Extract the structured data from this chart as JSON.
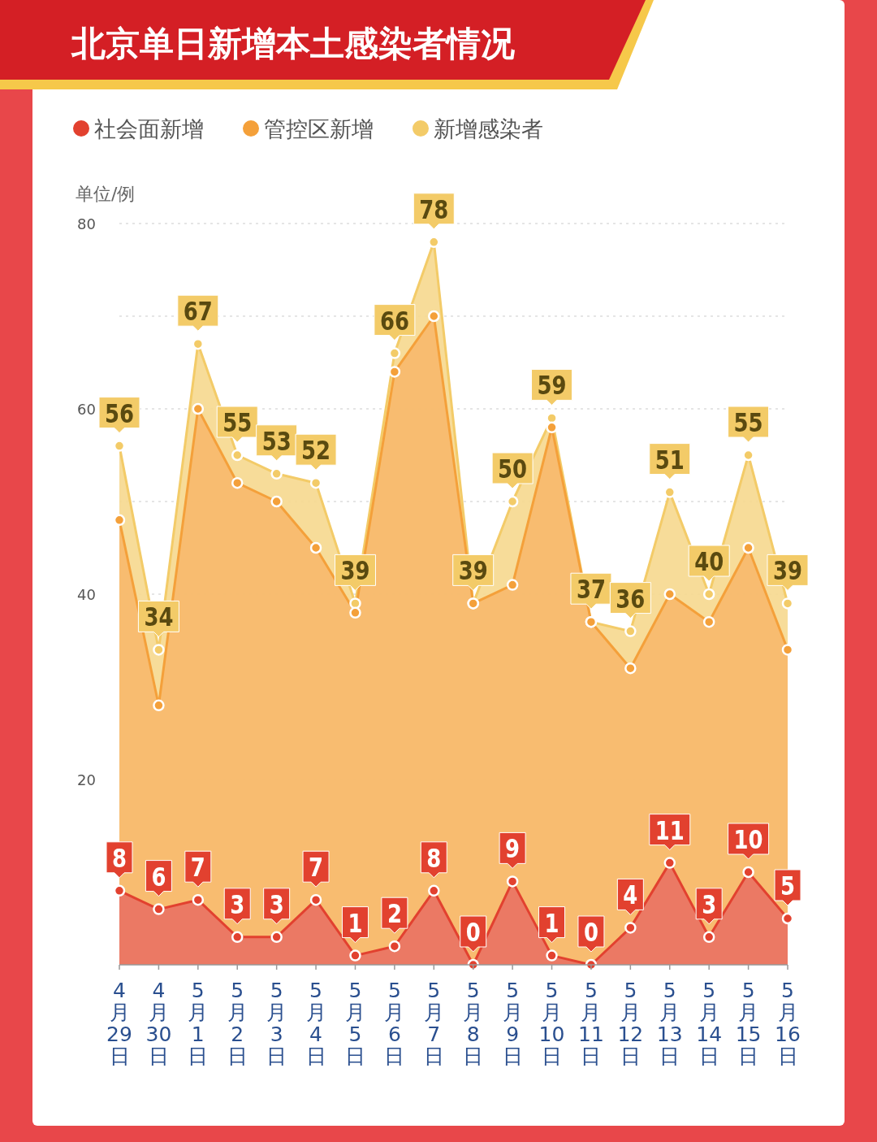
{
  "chart_data": {
    "type": "area",
    "title": "北京单日新增本土感染者情况",
    "ylabel": "单位/例",
    "categories": [
      "4月29日",
      "4月30日",
      "5月1日",
      "5月2日",
      "5月3日",
      "5月4日",
      "5月5日",
      "5月6日",
      "5月7日",
      "5月8日",
      "5月9日",
      "5月10日",
      "5月11日",
      "5月12日",
      "5月13日",
      "5月14日",
      "5月15日",
      "5月16日"
    ],
    "series": [
      {
        "name": "社会面新增",
        "color": "#e2412f",
        "values": [
          8,
          6,
          7,
          3,
          3,
          7,
          1,
          2,
          8,
          0,
          9,
          1,
          0,
          4,
          11,
          3,
          10,
          5
        ],
        "value_labels": [
          "8",
          "6",
          "7",
          "3",
          "3",
          "7",
          "1",
          "2",
          "8",
          "0",
          "9",
          "1",
          "0",
          "4",
          "11",
          "3",
          "10",
          "5"
        ]
      },
      {
        "name": "管控区新增",
        "color": "#f4a03a",
        "values": [
          48,
          28,
          60,
          52,
          50,
          45,
          38,
          64,
          70,
          39,
          41,
          58,
          37,
          32,
          40,
          37,
          45,
          34
        ]
      },
      {
        "name": "新增感染者",
        "color": "#f3cb68",
        "values": [
          56,
          34,
          67,
          55,
          53,
          52,
          39,
          66,
          78,
          39,
          50,
          59,
          37,
          36,
          51,
          40,
          55,
          39
        ],
        "value_labels": [
          "56",
          "34",
          "67",
          "55",
          "53",
          "52",
          "39",
          "66",
          "78",
          "39",
          "50",
          "59",
          "37",
          "36",
          "51",
          "40",
          "55",
          "39"
        ]
      }
    ],
    "ylim": [
      0,
      80
    ],
    "yticks": [
      20,
      40,
      {
        "value": 50,
        "label": null
      },
      60,
      {
        "value": 70,
        "label": null
      },
      80
    ],
    "grid": "y",
    "legend": "top left",
    "marker": "circle",
    "line_style": "solid"
  }
}
